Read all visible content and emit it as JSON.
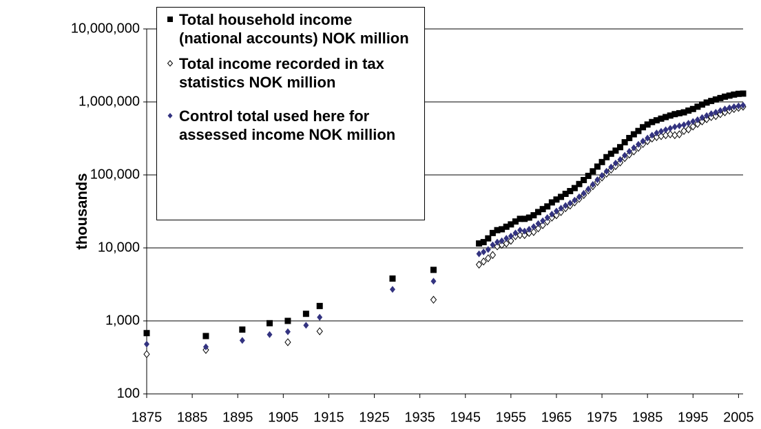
{
  "chart_data": {
    "type": "scatter",
    "y_label": "thousands",
    "log_y": true,
    "grid": true,
    "legend_position": "upper-left",
    "xlim": [
      1875,
      2006
    ],
    "ylim": [
      100,
      10000000
    ],
    "xticks": [
      1875,
      1885,
      1895,
      1905,
      1915,
      1925,
      1935,
      1945,
      1955,
      1965,
      1975,
      1985,
      1995,
      2005
    ],
    "yticks": [
      100,
      {
        "value": 1000,
        "label": "1,000"
      },
      {
        "value": 10000,
        "label": "10,000"
      },
      {
        "value": 100000,
        "label": "100,000"
      },
      {
        "value": 1000000,
        "label": "1,000,000"
      },
      {
        "value": 10000000,
        "label": "10,000,000"
      }
    ],
    "x": [
      1875,
      1888,
      1896,
      1902,
      1906,
      1910,
      1913,
      1929,
      1938,
      1948,
      1949,
      1950,
      1951,
      1952,
      1953,
      1954,
      1955,
      1956,
      1957,
      1958,
      1959,
      1960,
      1961,
      1962,
      1963,
      1964,
      1965,
      1966,
      1967,
      1968,
      1969,
      1970,
      1971,
      1972,
      1973,
      1974,
      1975,
      1976,
      1977,
      1978,
      1979,
      1980,
      1981,
      1982,
      1983,
      1984,
      1985,
      1986,
      1987,
      1988,
      1989,
      1990,
      1991,
      1992,
      1993,
      1994,
      1995,
      1996,
      1997,
      1998,
      1999,
      2000,
      2001,
      2002,
      2003,
      2004,
      2005,
      2006
    ],
    "series": [
      {
        "name": "Total household income (national accounts) NOK million",
        "marker": "square",
        "color": "#000000",
        "values": [
          680,
          620,
          760,
          930,
          1000,
          1250,
          1600,
          3800,
          5000,
          11500,
          12000,
          13500,
          16000,
          17500,
          18000,
          19500,
          21000,
          23000,
          25000,
          25000,
          26000,
          28000,
          31000,
          34000,
          37000,
          42000,
          46000,
          50000,
          55000,
          60000,
          66000,
          75000,
          85000,
          97000,
          112000,
          130000,
          150000,
          175000,
          195000,
          215000,
          240000,
          280000,
          320000,
          360000,
          400000,
          450000,
          490000,
          530000,
          560000,
          590000,
          620000,
          650000,
          680000,
          700000,
          720000,
          760000,
          800000,
          860000,
          920000,
          980000,
          1030000,
          1080000,
          1130000,
          1180000,
          1220000,
          1260000,
          1290000,
          1300000
        ]
      },
      {
        "name": "Total income recorded in tax statistics NOK million",
        "marker": "open-diamond",
        "color": "#000000",
        "values": [
          350,
          400,
          null,
          null,
          510,
          null,
          720,
          null,
          1950,
          5900,
          6500,
          7200,
          8000,
          10500,
          11000,
          11500,
          12500,
          14500,
          15000,
          15000,
          16000,
          16500,
          18500,
          20500,
          23000,
          26000,
          28000,
          31000,
          35000,
          38000,
          42000,
          47000,
          53000,
          61000,
          70000,
          80000,
          92000,
          104000,
          118000,
          132000,
          148000,
          170000,
          190000,
          210000,
          235000,
          265000,
          290000,
          315000,
          330000,
          340000,
          350000,
          360000,
          350000,
          360000,
          400000,
          420000,
          460000,
          500000,
          540000,
          580000,
          620000,
          640000,
          680000,
          720000,
          760000,
          800000,
          830000,
          860000
        ]
      },
      {
        "name": "Control total used here for assessed income NOK million",
        "marker": "diamond",
        "color": "#333380",
        "values": [
          480,
          440,
          540,
          650,
          710,
          870,
          1120,
          2700,
          3500,
          8300,
          8800,
          9500,
          11000,
          12000,
          12500,
          13500,
          14500,
          16000,
          17500,
          17000,
          18000,
          19500,
          21500,
          23500,
          26000,
          29000,
          32000,
          35000,
          38000,
          41000,
          45000,
          50000,
          56000,
          64000,
          74000,
          86000,
          98000,
          112000,
          128000,
          145000,
          162000,
          185000,
          210000,
          235000,
          262000,
          290000,
          320000,
          350000,
          375000,
          395000,
          415000,
          435000,
          455000,
          470000,
          485000,
          510000,
          540000,
          570000,
          610000,
          650000,
          690000,
          720000,
          760000,
          800000,
          830000,
          860000,
          880000,
          900000
        ]
      }
    ]
  }
}
